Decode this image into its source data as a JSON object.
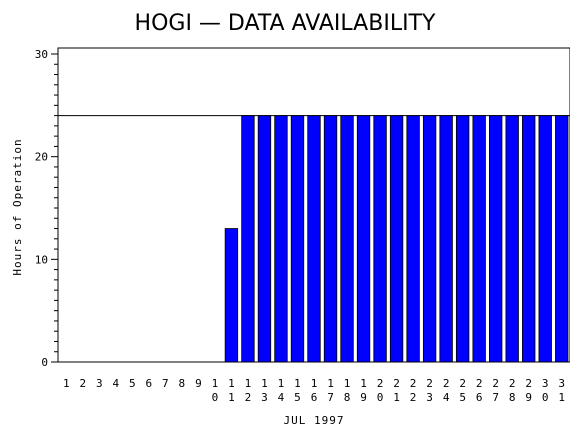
{
  "chart_data": {
    "type": "bar",
    "title": "HOGI — DATA AVAILABILITY",
    "xlabel": "JUL 1997",
    "ylabel": "Hours of Operation",
    "ylim": [
      0,
      30
    ],
    "yticks": [
      0,
      10,
      20,
      30
    ],
    "reference_line": 24,
    "bar_color": "#0000ff",
    "grid": false,
    "categories": [
      "1",
      "2",
      "3",
      "4",
      "5",
      "6",
      "7",
      "8",
      "9",
      "10",
      "11",
      "12",
      "13",
      "14",
      "15",
      "16",
      "17",
      "18",
      "19",
      "20",
      "21",
      "22",
      "23",
      "24",
      "25",
      "26",
      "27",
      "28",
      "29",
      "30",
      "31"
    ],
    "values": [
      0,
      0,
      0,
      0,
      0,
      0,
      0,
      0,
      0,
      0,
      13,
      24,
      24,
      24,
      24,
      24,
      24,
      24,
      24,
      24,
      24,
      24,
      24,
      24,
      24,
      24,
      24,
      24,
      24,
      24,
      24
    ]
  }
}
